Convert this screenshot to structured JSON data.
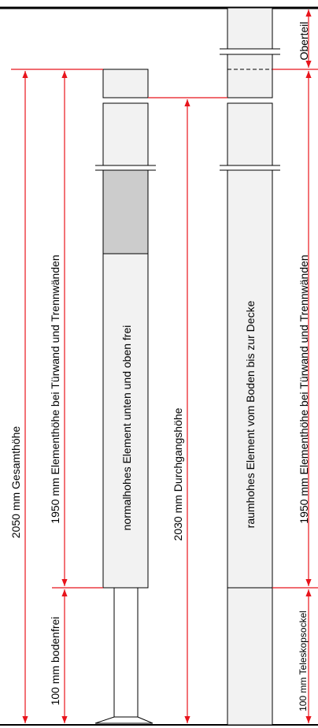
{
  "labels": {
    "gesamthoehe": "2050 mm Gesamthöhe",
    "elementhoehe_left": "1950 mm Elementhöhe bei Türwand und Trennwänden",
    "bodenfrei": "100 mm bodenfrei",
    "normalhohes": "normalhohes Element unten und oben frei",
    "durchgangshoehe": "2030 mm Durchgangshöhe",
    "raumhohes": "raumhohes Element vom Boden bis zur Decke",
    "elementhoehe_right": "1950 mm Elementhöhe bei Türwand und Trennwänden",
    "teleskopsockel": "100 mm Teleskopsockel",
    "oberteil": "Oberteil"
  },
  "colors": {
    "dimension": "#e8141c",
    "panel_fill": "#f2f2f2",
    "glass_fill": "#cccccc",
    "outline": "#000000"
  }
}
